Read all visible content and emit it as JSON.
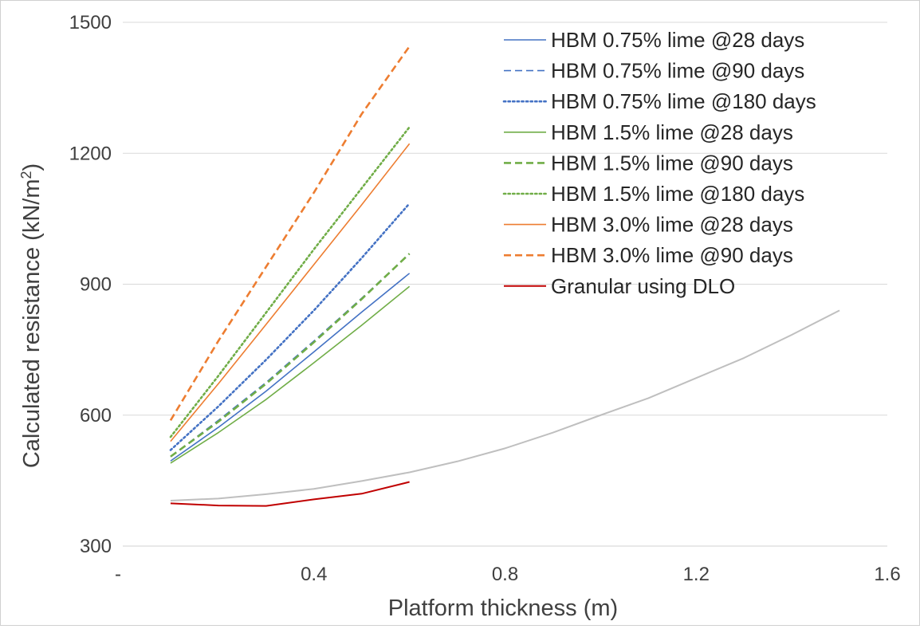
{
  "chart_data": {
    "type": "line",
    "xlabel": "Platform thickness (m)",
    "ylabel": "Calculated resistance (kN/m",
    "ylabel_sup": "2",
    "ylabel_suffix": ")",
    "xlim": [
      0,
      1.6
    ],
    "ylim": [
      300,
      1500
    ],
    "x_ticks": [
      {
        "value": 0,
        "label": "-"
      },
      {
        "value": 0.4,
        "label": "0.4"
      },
      {
        "value": 0.8,
        "label": "0.8"
      },
      {
        "value": 1.2,
        "label": "1.2"
      },
      {
        "value": 1.6,
        "label": "1.6"
      }
    ],
    "y_ticks": [
      {
        "value": 300,
        "label": "300"
      },
      {
        "value": 600,
        "label": "600"
      },
      {
        "value": 900,
        "label": "900"
      },
      {
        "value": 1200,
        "label": "1200"
      },
      {
        "value": 1500,
        "label": "1500"
      }
    ],
    "grid": "horizontal",
    "legend_position": "top-right",
    "series": [
      {
        "name": "HBM 0.75% lime @28 days",
        "color": "#4472c4",
        "dash": "solid",
        "width": 1.6,
        "x": [
          0.1,
          0.2,
          0.3,
          0.4,
          0.5,
          0.6
        ],
        "y": [
          495,
          572,
          655,
          745,
          836,
          925
        ]
      },
      {
        "name": "HBM 0.75% lime @90 days",
        "color": "#4472c4",
        "dash": "dashed",
        "width": 1.6,
        "x": [
          0.1,
          0.2,
          0.3,
          0.4,
          0.5,
          0.6
        ],
        "y": [
          505,
          588,
          675,
          770,
          868,
          970
        ]
      },
      {
        "name": "HBM 0.75% lime @180 days",
        "color": "#4472c4",
        "dash": "dotted",
        "width": 2.6,
        "x": [
          0.1,
          0.2,
          0.3,
          0.4,
          0.5,
          0.6
        ],
        "y": [
          520,
          620,
          727,
          840,
          960,
          1085
        ]
      },
      {
        "name": "HBM 1.5% lime @28 days",
        "color": "#70ad47",
        "dash": "solid",
        "width": 1.6,
        "x": [
          0.1,
          0.2,
          0.3,
          0.4,
          0.5,
          0.6
        ],
        "y": [
          490,
          560,
          636,
          720,
          806,
          895
        ]
      },
      {
        "name": "HBM 1.5% lime @90 days",
        "color": "#70ad47",
        "dash": "dashed",
        "width": 2.6,
        "x": [
          0.1,
          0.2,
          0.3,
          0.4,
          0.5,
          0.6
        ],
        "y": [
          505,
          585,
          672,
          767,
          866,
          970
        ]
      },
      {
        "name": "HBM 1.5% lime @180 days",
        "color": "#70ad47",
        "dash": "dotted",
        "width": 2.6,
        "x": [
          0.1,
          0.2,
          0.3,
          0.4,
          0.5,
          0.6
        ],
        "y": [
          550,
          690,
          835,
          980,
          1120,
          1260
        ]
      },
      {
        "name": "HBM 3.0% lime @28 days",
        "color": "#ed7d31",
        "dash": "solid",
        "width": 1.6,
        "x": [
          0.1,
          0.2,
          0.3,
          0.4,
          0.5,
          0.6
        ],
        "y": [
          540,
          672,
          808,
          945,
          1082,
          1222
        ]
      },
      {
        "name": "HBM 3.0% lime @90 days",
        "color": "#ed7d31",
        "dash": "dashed",
        "width": 2.6,
        "x": [
          0.1,
          0.2,
          0.3,
          0.4,
          0.5,
          0.6
        ],
        "y": [
          588,
          770,
          940,
          1110,
          1290,
          1445
        ]
      },
      {
        "name": "Granular using DLO",
        "color": "#c00000",
        "dash": "solid",
        "width": 2,
        "x": [
          0.1,
          0.2,
          0.3,
          0.4,
          0.5,
          0.6
        ],
        "y": [
          398,
          393,
          392,
          407,
          420,
          447
        ]
      },
      {
        "name": "",
        "color": "#bfbfbf",
        "dash": "solid",
        "width": 2,
        "x": [
          0.1,
          0.2,
          0.3,
          0.4,
          0.5,
          0.6,
          0.7,
          0.8,
          0.9,
          1.0,
          1.1,
          1.2,
          1.3,
          1.4,
          1.5
        ],
        "y": [
          404,
          409,
          419,
          431,
          449,
          469,
          494,
          524,
          560,
          600,
          639,
          685,
          731,
          784,
          840
        ]
      }
    ]
  }
}
